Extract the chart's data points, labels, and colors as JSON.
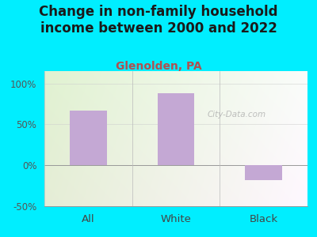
{
  "title": "Change in non-family household\nincome between 2000 and 2022",
  "subtitle": "Glenolden, PA",
  "categories": [
    "All",
    "White",
    "Black"
  ],
  "values": [
    67,
    88,
    -18
  ],
  "bar_color": "#c4a8d4",
  "title_fontsize": 12,
  "subtitle_fontsize": 10,
  "subtitle_color": "#b05050",
  "title_color": "#1a1a1a",
  "bg_color": "#00eeff",
  "plot_bg_left": "#e8f5d8",
  "plot_bg_right": "#f5f5f0",
  "ylim": [
    -50,
    115
  ],
  "yticks": [
    -50,
    0,
    50,
    100
  ],
  "ytick_labels": [
    "-50%",
    "0%",
    "50%",
    "100%"
  ],
  "watermark": "City-Data.com",
  "bar_width": 0.42
}
